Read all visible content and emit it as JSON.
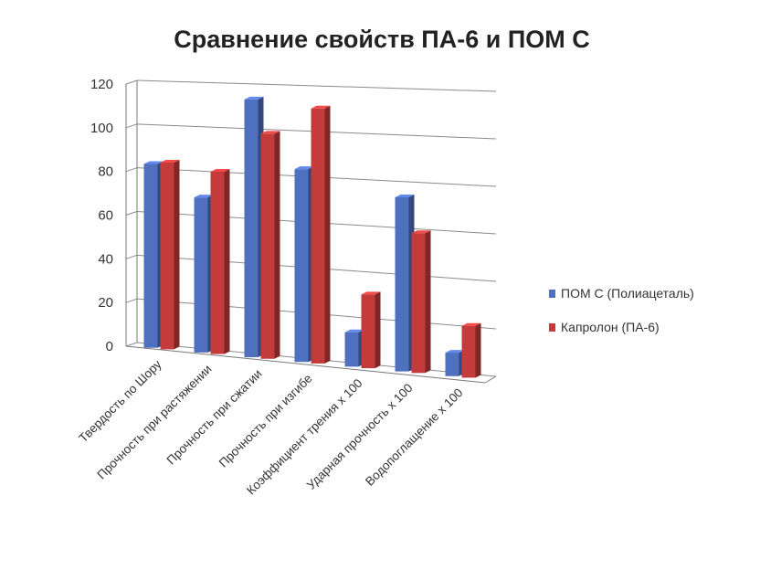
{
  "chart_data": {
    "type": "bar",
    "title": "Сравнение свойств ПА-6 и ПОМ С",
    "xlabel": "",
    "ylabel": "",
    "ylim": [
      0,
      120
    ],
    "yticks": [
      0,
      20,
      40,
      60,
      80,
      100,
      120
    ],
    "grid": true,
    "legend_position": "right",
    "categories": [
      "Твердость по Шору",
      "Прочность при растяжении",
      "Прочность при сжатии",
      "Прочность при изгибе",
      "Коэффициент трения х 100",
      "Ударная прочность х 100",
      "Водопоглащение х 100"
    ],
    "series": [
      {
        "name": "ПОМ С (Полиацеталь)",
        "color": "#4f6fbf",
        "values": [
          84,
          70,
          115,
          85,
          15,
          75,
          10
        ]
      },
      {
        "name": "Капролон (ПА-6)",
        "color": "#c43b3b",
        "values": [
          85,
          82,
          100,
          112,
          32,
          60,
          22
        ]
      }
    ]
  }
}
